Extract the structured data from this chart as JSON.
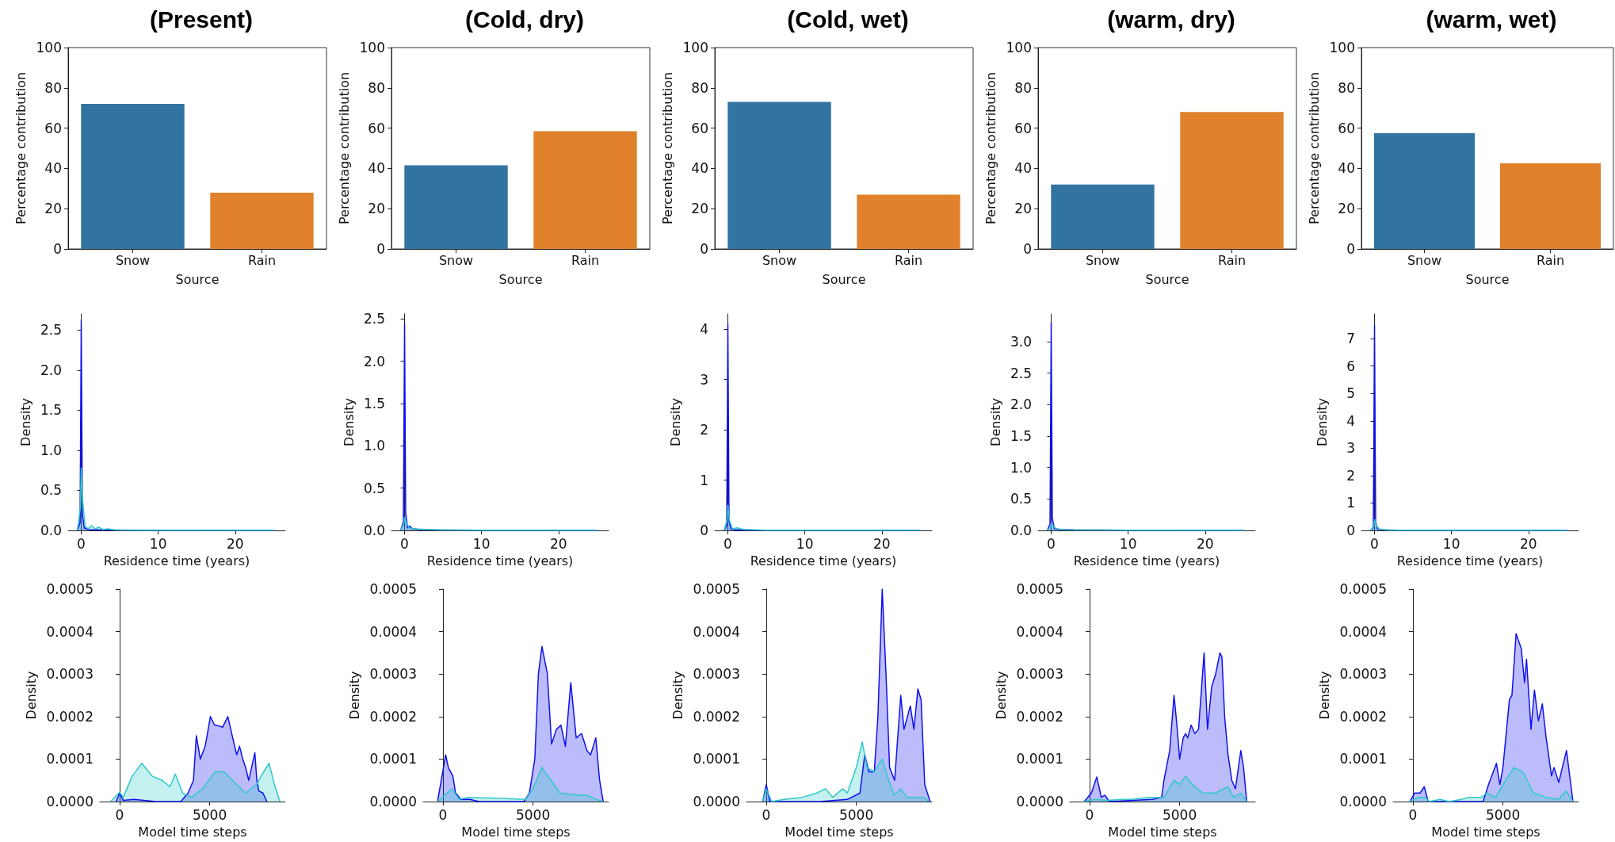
{
  "chart_data": [
    {
      "type": "bar",
      "title": "(Present)",
      "xlabel": "Source",
      "ylabel": "Percentage contribution",
      "categories": [
        "Snow",
        "Rain"
      ],
      "values": [
        72,
        28
      ],
      "colors": [
        "#3274a1",
        "#e1812c"
      ],
      "ylim": [
        0,
        100
      ],
      "yticks": [
        0,
        20,
        40,
        60,
        80,
        100
      ]
    },
    {
      "type": "bar",
      "title": "(Cold, dry)",
      "xlabel": "Source",
      "ylabel": "Percentage contribution",
      "categories": [
        "Snow",
        "Rain"
      ],
      "values": [
        41.5,
        58.5
      ],
      "colors": [
        "#3274a1",
        "#e1812c"
      ],
      "ylim": [
        0,
        100
      ],
      "yticks": [
        0,
        20,
        40,
        60,
        80,
        100
      ]
    },
    {
      "type": "bar",
      "title": "(Cold, wet)",
      "xlabel": "Source",
      "ylabel": "Percentage contribution",
      "categories": [
        "Snow",
        "Rain"
      ],
      "values": [
        73,
        27
      ],
      "colors": [
        "#3274a1",
        "#e1812c"
      ],
      "ylim": [
        0,
        100
      ],
      "yticks": [
        0,
        20,
        40,
        60,
        80,
        100
      ]
    },
    {
      "type": "bar",
      "title": "(warm, dry)",
      "xlabel": "Source",
      "ylabel": "Percentage contribution",
      "categories": [
        "Snow",
        "Rain"
      ],
      "values": [
        32,
        68
      ],
      "colors": [
        "#3274a1",
        "#e1812c"
      ],
      "ylim": [
        0,
        100
      ],
      "yticks": [
        0,
        20,
        40,
        60,
        80,
        100
      ]
    },
    {
      "type": "bar",
      "title": "(warm, wet)",
      "xlabel": "Source",
      "ylabel": "Percentage contribution",
      "categories": [
        "Snow",
        "Rain"
      ],
      "values": [
        57.5,
        42.5
      ],
      "colors": [
        "#3274a1",
        "#e1812c"
      ],
      "ylim": [
        0,
        100
      ],
      "yticks": [
        0,
        20,
        40,
        60,
        80,
        100
      ]
    },
    {
      "type": "area",
      "xlabel": "Residence time (years)",
      "ylabel": "Density",
      "xlim": [
        -1.7,
        26.5
      ],
      "xticks": [
        0,
        10,
        20
      ],
      "ylim": [
        0,
        2.7
      ],
      "yticks": [
        {
          "value": 0,
          "label": "0.0"
        },
        {
          "value": 0.5,
          "label": "0.5"
        },
        {
          "value": 1,
          "label": "1.0"
        },
        {
          "value": 1.5,
          "label": "1.5"
        },
        {
          "value": 2,
          "label": "2.0"
        },
        {
          "value": 2.5,
          "label": "2.5"
        }
      ],
      "series": [
        {
          "color": "#1010f0",
          "x": [
            -0.5,
            -0.15,
            0,
            0.15,
            0.4,
            1,
            3,
            10,
            25
          ],
          "values": [
            0,
            0.1,
            2.62,
            0.2,
            0.03,
            0.01,
            0.005,
            0.002,
            0
          ]
        },
        {
          "color": "#30c8c8",
          "x": [
            -0.5,
            -0.1,
            0,
            0.15,
            0.5,
            0.9,
            1.3,
            1.8,
            2.3,
            2.8,
            3.4,
            4.5,
            10,
            25
          ],
          "values": [
            0,
            0.3,
            0.78,
            0.4,
            0.05,
            0.02,
            0.06,
            0.02,
            0.04,
            0.01,
            0.02,
            0.005,
            0.001,
            0
          ]
        }
      ]
    },
    {
      "type": "area",
      "xlabel": "Residence time (years)",
      "ylabel": "Density",
      "xlim": [
        -1.7,
        26.5
      ],
      "xticks": [
        0,
        10,
        20
      ],
      "ylim": [
        0,
        2.56
      ],
      "yticks": [
        {
          "value": 0,
          "label": "0.0"
        },
        {
          "value": 0.5,
          "label": "0.5"
        },
        {
          "value": 1,
          "label": "1.0"
        },
        {
          "value": 1.5,
          "label": "1.5"
        },
        {
          "value": 2,
          "label": "2.0"
        },
        {
          "value": 2.5,
          "label": "2.5"
        }
      ],
      "series": [
        {
          "color": "#1010f0",
          "x": [
            -0.5,
            -0.15,
            0,
            0.15,
            0.4,
            0.7,
            1,
            2,
            5,
            10,
            25
          ],
          "values": [
            0,
            0.1,
            2.45,
            0.2,
            0.03,
            0.05,
            0.02,
            0.01,
            0.005,
            0.002,
            0
          ]
        },
        {
          "color": "#30c8c8",
          "x": [
            -0.5,
            -0.1,
            0,
            0.2,
            0.6,
            1.2,
            2,
            3,
            5,
            10,
            25
          ],
          "values": [
            0,
            0.08,
            0.15,
            0.1,
            0.03,
            0.02,
            0.015,
            0.01,
            0.005,
            0.002,
            0
          ]
        }
      ]
    },
    {
      "type": "area",
      "xlabel": "Residence time (years)",
      "ylabel": "Density",
      "xlim": [
        -1.7,
        26.5
      ],
      "xticks": [
        0,
        10,
        20
      ],
      "ylim": [
        0,
        4.3
      ],
      "yticks": [
        0,
        1,
        2,
        3,
        4
      ],
      "series": [
        {
          "color": "#1010f0",
          "x": [
            -0.5,
            -0.15,
            0,
            0.15,
            0.4,
            1,
            3,
            10,
            25
          ],
          "values": [
            0,
            0.1,
            4.1,
            0.2,
            0.03,
            0.01,
            0.005,
            0.002,
            0
          ]
        },
        {
          "color": "#30c8c8",
          "x": [
            -0.5,
            -0.1,
            0,
            0.2,
            0.6,
            1.2,
            2,
            3,
            5,
            10,
            25
          ],
          "values": [
            0,
            0.2,
            0.5,
            0.2,
            0.03,
            0.05,
            0.02,
            0.015,
            0.005,
            0.002,
            0
          ]
        }
      ]
    },
    {
      "type": "area",
      "xlabel": "Residence time (years)",
      "ylabel": "Density",
      "xlim": [
        -1.7,
        26.5
      ],
      "xticks": [
        0,
        10,
        20
      ],
      "ylim": [
        0,
        3.44
      ],
      "yticks": [
        {
          "value": 0,
          "label": "0.0"
        },
        {
          "value": 0.5,
          "label": "0.5"
        },
        {
          "value": 1,
          "label": "1.0"
        },
        {
          "value": 1.5,
          "label": "1.5"
        },
        {
          "value": 2,
          "label": "2.0"
        },
        {
          "value": 2.5,
          "label": "2.5"
        },
        {
          "value": 3,
          "label": "3.0"
        }
      ],
      "series": [
        {
          "color": "#1010f0",
          "x": [
            -0.5,
            -0.15,
            0,
            0.15,
            0.4,
            1,
            3,
            10,
            25
          ],
          "values": [
            0,
            0.1,
            3.3,
            0.2,
            0.03,
            0.015,
            0.008,
            0.003,
            0
          ]
        },
        {
          "color": "#30c8c8",
          "x": [
            -0.5,
            -0.1,
            0,
            0.2,
            0.6,
            1.2,
            2,
            5,
            10,
            25
          ],
          "values": [
            0,
            0.05,
            0.1,
            0.08,
            0.03,
            0.02,
            0.01,
            0.005,
            0.002,
            0
          ]
        }
      ]
    },
    {
      "type": "area",
      "xlabel": "Residence time (years)",
      "ylabel": "Density",
      "xlim": [
        -1.7,
        26.5
      ],
      "xticks": [
        0,
        10,
        20
      ],
      "ylim": [
        0,
        7.9
      ],
      "yticks": [
        0,
        1,
        2,
        3,
        4,
        5,
        6,
        7
      ],
      "series": [
        {
          "color": "#1010f0",
          "x": [
            -0.5,
            -0.15,
            0,
            0.15,
            0.4,
            1,
            3,
            10,
            25
          ],
          "values": [
            0,
            0.1,
            7.5,
            0.3,
            0.05,
            0.02,
            0.01,
            0.003,
            0
          ]
        },
        {
          "color": "#30c8c8",
          "x": [
            -0.5,
            -0.1,
            0,
            0.2,
            0.6,
            1.2,
            2,
            5,
            10,
            25
          ],
          "values": [
            0,
            0.15,
            0.4,
            0.2,
            0.05,
            0.03,
            0.01,
            0.005,
            0.002,
            0
          ]
        }
      ]
    },
    {
      "type": "area",
      "xlabel": "Model time steps",
      "ylabel": "Density",
      "xlim": [
        -1100,
        9200
      ],
      "xticks": [
        0,
        5000
      ],
      "ylim": [
        0,
        0.0005
      ],
      "yticks": [
        {
          "value": 0,
          "label": "0.0000"
        },
        {
          "value": 0.0001,
          "label": "0.0001"
        },
        {
          "value": 0.0002,
          "label": "0.0002"
        },
        {
          "value": 0.0003,
          "label": "0.0003"
        },
        {
          "value": 0.0004,
          "label": "0.0004"
        },
        {
          "value": 0.0005,
          "label": "0.0005"
        }
      ],
      "series": [
        {
          "color": "#1010f0",
          "x": [
            -200,
            0,
            200,
            800,
            2000,
            3400,
            3800,
            4100,
            4260,
            4480,
            4750,
            5040,
            5270,
            5500,
            5720,
            6010,
            6280,
            6500,
            6660,
            6840,
            7000,
            7170,
            7510,
            7620,
            7730,
            7960,
            8180
          ],
          "values": [
            0,
            2e-05,
            3e-06,
            5e-06,
            0,
            0,
            2e-05,
            5e-05,
            0.000155,
            0.0001,
            0.00013,
            0.0002,
            0.00018,
            0.000178,
            0.000175,
            0.0002,
            0.00015,
            0.00011,
            0.00013,
            0.0001,
            8e-05,
            5e-05,
            0.000115,
            5e-05,
            2.5e-05,
            2e-05,
            0
          ]
        },
        {
          "color": "#30c8c8",
          "x": [
            -500,
            0,
            200,
            700,
            1230,
            1800,
            2350,
            2800,
            3090,
            3500,
            4000,
            4600,
            5300,
            5800,
            6500,
            7000,
            7600,
            8000,
            8300,
            8600,
            8900
          ],
          "values": [
            0,
            2.2e-05,
            1e-05,
            6e-05,
            9e-05,
            6e-05,
            5e-05,
            3.5e-05,
            6.5e-05,
            2e-05,
            1e-05,
            3e-05,
            7e-05,
            7e-05,
            4e-05,
            2e-05,
            4e-05,
            7e-05,
            9e-05,
            4e-05,
            0
          ]
        }
      ]
    },
    {
      "type": "area",
      "xlabel": "Model time steps",
      "ylabel": "Density",
      "xlim": [
        -1100,
        9200
      ],
      "xticks": [
        0,
        5000
      ],
      "ylim": [
        0,
        0.0005
      ],
      "yticks": [
        {
          "value": 0,
          "label": "0.0000"
        },
        {
          "value": 0.0001,
          "label": "0.0001"
        },
        {
          "value": 0.0002,
          "label": "0.0002"
        },
        {
          "value": 0.0003,
          "label": "0.0003"
        },
        {
          "value": 0.0004,
          "label": "0.0004"
        },
        {
          "value": 0.0005,
          "label": "0.0005"
        }
      ],
      "series": [
        {
          "color": "#1010f0",
          "x": [
            -300,
            150,
            300,
            550,
            700,
            1000,
            1500,
            2000,
            4500,
            4800,
            5100,
            5300,
            5500,
            5800,
            6030,
            6300,
            6550,
            6800,
            7100,
            7400,
            7700,
            8000,
            8200,
            8490,
            8700,
            8900
          ],
          "values": [
            0,
            0.00011,
            8e-05,
            6e-05,
            2e-05,
            5e-06,
            5e-06,
            0,
            0,
            2e-05,
            0.0001,
            0.0003,
            0.000365,
            0.0003,
            0.000135,
            0.00017,
            0.00018,
            0.00013,
            0.00028,
            0.00015,
            0.00016,
            0.00012,
            0.00011,
            0.00015,
            5e-05,
            0
          ]
        },
        {
          "color": "#30c8c8",
          "x": [
            -300,
            500,
            900,
            1400,
            3000,
            4600,
            5000,
            5500,
            6000,
            6500,
            7500,
            8000,
            8500,
            8900
          ],
          "values": [
            0,
            3e-05,
            5e-06,
            1e-05,
            8e-06,
            5e-06,
            3e-05,
            8e-05,
            5e-05,
            2e-05,
            1.5e-05,
            1.5e-05,
            5e-06,
            0
          ]
        }
      ]
    },
    {
      "type": "area",
      "xlabel": "Model time steps",
      "ylabel": "Density",
      "xlim": [
        -1100,
        9200
      ],
      "xticks": [
        0,
        5000
      ],
      "ylim": [
        0,
        0.0005
      ],
      "yticks": [
        {
          "value": 0,
          "label": "0.0000"
        },
        {
          "value": 0.0001,
          "label": "0.0001"
        },
        {
          "value": 0.0002,
          "label": "0.0002"
        },
        {
          "value": 0.0003,
          "label": "0.0003"
        },
        {
          "value": 0.0004,
          "label": "0.0004"
        },
        {
          "value": 0.0005,
          "label": "0.0005"
        }
      ],
      "series": [
        {
          "color": "#1010f0",
          "x": [
            -200,
            0,
            200,
            3000,
            4500,
            5200,
            5470,
            5700,
            6000,
            6200,
            6440,
            6650,
            6850,
            7130,
            7470,
            7650,
            8000,
            8200,
            8420,
            8600,
            8800,
            8950,
            9100
          ],
          "values": [
            0,
            4e-05,
            0,
            0,
            5e-06,
            2e-05,
            0.00011,
            7e-05,
            7e-05,
            0.0002,
            0.0005,
            0.0003,
            8e-05,
            5e-05,
            0.00025,
            0.00017,
            0.000225,
            0.00017,
            0.000265,
            0.00024,
            4e-05,
            2e-05,
            0
          ]
        },
        {
          "color": "#30c8c8",
          "x": [
            -200,
            0,
            300,
            1000,
            2000,
            2800,
            3290,
            3700,
            4240,
            4500,
            5000,
            5330,
            5600,
            6000,
            6440,
            6800,
            7100,
            7470,
            7800,
            8800,
            9000
          ],
          "values": [
            0,
            3e-05,
            0,
            5e-06,
            1e-05,
            2e-05,
            3e-05,
            1e-05,
            3e-05,
            2e-05,
            8e-05,
            0.00014,
            8e-05,
            7e-05,
            0.0001,
            5e-05,
            1.5e-05,
            3e-05,
            1e-05,
            1e-05,
            0
          ]
        }
      ]
    },
    {
      "type": "area",
      "xlabel": "Model time steps",
      "ylabel": "Density",
      "xlim": [
        -1100,
        9200
      ],
      "xticks": [
        0,
        5000
      ],
      "ylim": [
        0,
        0.0005
      ],
      "yticks": [
        {
          "value": 0,
          "label": "0.0000"
        },
        {
          "value": 0.0001,
          "label": "0.0001"
        },
        {
          "value": 0.0002,
          "label": "0.0002"
        },
        {
          "value": 0.0003,
          "label": "0.0003"
        },
        {
          "value": 0.0004,
          "label": "0.0004"
        },
        {
          "value": 0.0005,
          "label": "0.0005"
        }
      ],
      "series": [
        {
          "color": "#1010f0",
          "x": [
            -300,
            100,
            400,
            650,
            850,
            1100,
            3500,
            4000,
            4130,
            4450,
            4690,
            4850,
            5000,
            5200,
            5330,
            5450,
            5640,
            5850,
            6050,
            6360,
            6550,
            6780,
            7000,
            7240,
            7350,
            7500,
            7690,
            7900,
            8100,
            8400,
            8550,
            8730
          ],
          "values": [
            0,
            2e-05,
            5.8e-05,
            1e-05,
            1.5e-05,
            0,
            5e-06,
            1e-05,
            5e-05,
            0.00012,
            0.00025,
            0.00018,
            0.0001,
            0.00015,
            0.00016,
            0.00015,
            0.00018,
            0.00016,
            0.00017,
            0.00035,
            0.00017,
            0.00027,
            0.0003,
            0.00035,
            0.00034,
            0.0002,
            0.00011,
            5e-05,
            3e-05,
            0.00012,
            8e-05,
            0
          ]
        },
        {
          "color": "#30c8c8",
          "x": [
            -300,
            300,
            1000,
            1800,
            2300,
            3300,
            4130,
            4690,
            5000,
            5330,
            5700,
            6300,
            7000,
            7690,
            8000,
            8400,
            8730
          ],
          "values": [
            0,
            5e-06,
            3e-06,
            5e-06,
            5e-06,
            1e-05,
            1e-05,
            5e-05,
            4e-05,
            6e-05,
            4e-05,
            2e-05,
            2e-05,
            3.5e-05,
            1e-05,
            2e-05,
            0
          ]
        }
      ]
    },
    {
      "type": "area",
      "xlabel": "Model time steps",
      "ylabel": "Density",
      "xlim": [
        -1100,
        9200
      ],
      "xticks": [
        0,
        5000
      ],
      "ylim": [
        0,
        0.0005
      ],
      "yticks": [
        {
          "value": 0,
          "label": "0.0000"
        },
        {
          "value": 0.0001,
          "label": "0.0001"
        },
        {
          "value": 0.0002,
          "label": "0.0002"
        },
        {
          "value": 0.0003,
          "label": "0.0003"
        },
        {
          "value": 0.0004,
          "label": "0.0004"
        },
        {
          "value": 0.0005,
          "label": "0.0005"
        }
      ],
      "series": [
        {
          "color": "#1010f0",
          "x": [
            -170,
            90,
            400,
            630,
            850,
            3900,
            4200,
            4640,
            4830,
            5000,
            5360,
            5500,
            5730,
            6020,
            6200,
            6310,
            6560,
            6750,
            6970,
            7190,
            7400,
            7700,
            7840,
            8100,
            8530,
            8890
          ],
          "values": [
            0,
            2e-05,
            2e-05,
            3.5e-05,
            0,
            0,
            4e-05,
            9e-05,
            4e-05,
            8e-05,
            0.00024,
            0.00025,
            0.000395,
            0.00036,
            0.00028,
            0.000335,
            0.00017,
            0.000262,
            0.00019,
            0.00023,
            0.00015,
            6e-05,
            8e-05,
            4.5e-05,
            0.00012,
            0
          ]
        },
        {
          "color": "#30c8c8",
          "x": [
            -200,
            300,
            700,
            900,
            1500,
            2000,
            2700,
            3100,
            3800,
            4100,
            4600,
            5000,
            5600,
            6100,
            6700,
            7400,
            8100,
            8500,
            8900
          ],
          "values": [
            0,
            1e-05,
            1e-05,
            0,
            5e-06,
            0,
            5e-06,
            1e-05,
            1e-05,
            2e-05,
            1e-05,
            4e-05,
            8e-05,
            7e-05,
            2e-05,
            1e-05,
            5e-06,
            2.5e-05,
            0
          ]
        }
      ]
    }
  ]
}
